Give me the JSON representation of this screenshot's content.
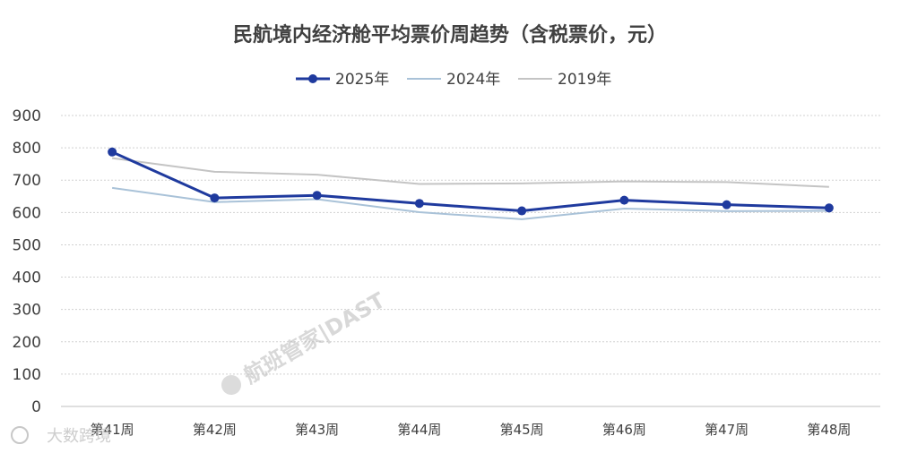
{
  "chart_data": {
    "type": "line",
    "title": "民航境内经济舱平均票价周趋势（含税票价，元）",
    "categories": [
      "第41周",
      "第42周",
      "第43周",
      "第44周",
      "第45周",
      "第46周",
      "第47周",
      "第48周"
    ],
    "series": [
      {
        "name": "2025年",
        "values": [
          787,
          645,
          653,
          628,
          605,
          638,
          624,
          614
        ],
        "color": "#1f3a9e",
        "markers": true
      },
      {
        "name": "2024年",
        "values": [
          676,
          632,
          641,
          601,
          579,
          612,
          604,
          605
        ],
        "color": "#a9c2d8",
        "markers": false
      },
      {
        "name": "2019年",
        "values": [
          768,
          726,
          717,
          688,
          690,
          696,
          694,
          679
        ],
        "color": "#c4c4c4",
        "markers": false
      }
    ],
    "ylim": [
      0,
      900
    ],
    "yticks": [
      0,
      100,
      200,
      300,
      400,
      500,
      600,
      700,
      800,
      900
    ],
    "xlabel": "",
    "ylabel": "",
    "grid": true,
    "legend_position": "top-center"
  },
  "watermarks": {
    "center": "航班管家|DAST",
    "corner": "大数跨境"
  }
}
